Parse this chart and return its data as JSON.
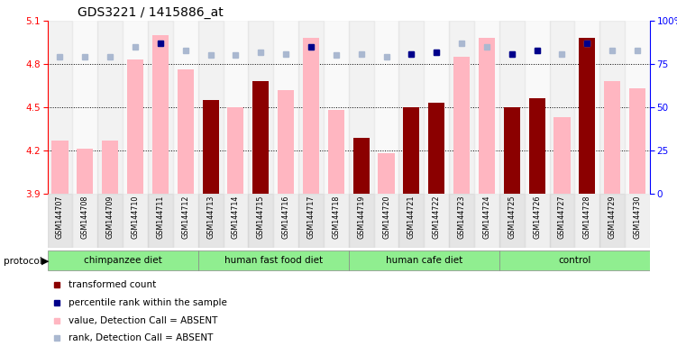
{
  "title": "GDS3221 / 1415886_at",
  "samples": [
    "GSM144707",
    "GSM144708",
    "GSM144709",
    "GSM144710",
    "GSM144711",
    "GSM144712",
    "GSM144713",
    "GSM144714",
    "GSM144715",
    "GSM144716",
    "GSM144717",
    "GSM144718",
    "GSM144719",
    "GSM144720",
    "GSM144721",
    "GSM144722",
    "GSM144723",
    "GSM144724",
    "GSM144725",
    "GSM144726",
    "GSM144727",
    "GSM144728",
    "GSM144729",
    "GSM144730"
  ],
  "values": [
    4.27,
    4.21,
    4.27,
    4.83,
    5.0,
    4.76,
    4.55,
    4.5,
    4.68,
    4.62,
    4.98,
    4.48,
    4.29,
    4.18,
    4.5,
    4.53,
    4.85,
    4.98,
    4.5,
    4.56,
    4.43,
    4.98,
    4.68,
    4.63
  ],
  "detection": [
    "A",
    "A",
    "A",
    "A",
    "A",
    "A",
    "P",
    "A",
    "P",
    "A",
    "A",
    "A",
    "P",
    "A",
    "P",
    "P",
    "A",
    "A",
    "P",
    "P",
    "A",
    "P",
    "A",
    "A"
  ],
  "ranks": [
    79,
    79,
    79,
    85,
    87,
    83,
    80,
    80,
    82,
    81,
    85,
    80,
    81,
    79,
    81,
    82,
    87,
    85,
    81,
    83,
    81,
    87,
    83,
    83
  ],
  "rank_detection": [
    "A",
    "A",
    "A",
    "A",
    "P",
    "A",
    "A",
    "A",
    "A",
    "A",
    "P",
    "A",
    "A",
    "A",
    "P",
    "P",
    "A",
    "A",
    "P",
    "P",
    "A",
    "P",
    "A",
    "A"
  ],
  "groups": [
    {
      "name": "chimpanzee diet",
      "start": 0,
      "end": 5,
      "color": "#90ee90"
    },
    {
      "name": "human fast food diet",
      "start": 6,
      "end": 11,
      "color": "#90ee90"
    },
    {
      "name": "human cafe diet",
      "start": 12,
      "end": 17,
      "color": "#90ee90"
    },
    {
      "name": "control",
      "start": 18,
      "end": 23,
      "color": "#90ee90"
    }
  ],
  "ylim_left": [
    3.9,
    5.1
  ],
  "ylim_right": [
    0,
    100
  ],
  "yticks_left": [
    3.9,
    4.2,
    4.5,
    4.8,
    5.1
  ],
  "yticks_right": [
    0,
    25,
    50,
    75,
    100
  ],
  "color_present_bar": "#8b0000",
  "color_absent_bar": "#ffb6c1",
  "color_present_rank": "#00008b",
  "color_absent_rank": "#aab8d0"
}
